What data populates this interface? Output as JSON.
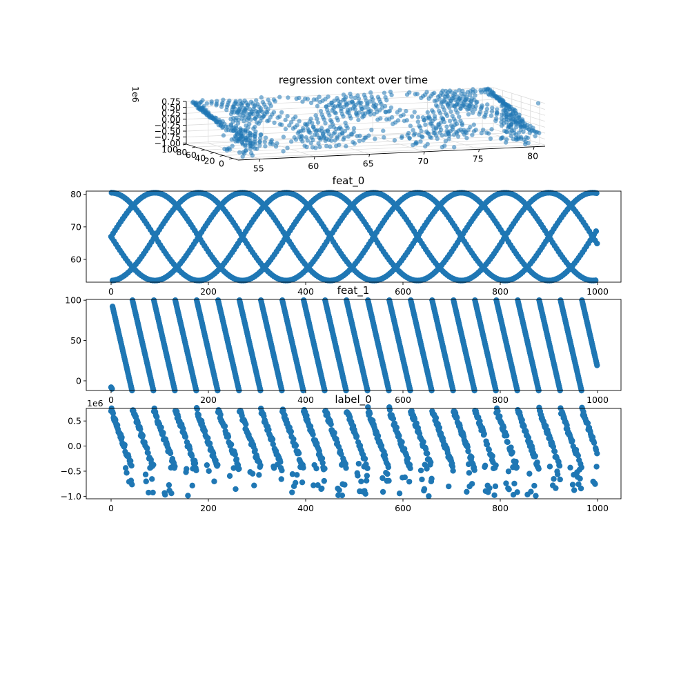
{
  "chart_data": [
    {
      "type": "scatter3d",
      "title": "regression context over time",
      "z_offset_label": "1e6",
      "x_range": [
        53,
        81
      ],
      "y_range": [
        -12,
        100
      ],
      "z_range": [
        -1.05,
        0.75
      ],
      "x_ticks": [
        {
          "v": 55,
          "t": "55"
        },
        {
          "v": 60,
          "t": "60"
        },
        {
          "v": 65,
          "t": "65"
        },
        {
          "v": 70,
          "t": "70"
        },
        {
          "v": 75,
          "t": "75"
        },
        {
          "v": 80,
          "t": "80"
        }
      ],
      "y_ticks": [
        {
          "v": 0,
          "t": "0"
        },
        {
          "v": 20,
          "t": "20"
        },
        {
          "v": 40,
          "t": "40"
        },
        {
          "v": 60,
          "t": "60"
        },
        {
          "v": 80,
          "t": "80"
        },
        {
          "v": 100,
          "t": "100"
        }
      ],
      "z_ticks": [
        {
          "v": 0.75,
          "t": "0.75"
        },
        {
          "v": 0.5,
          "t": "0.50"
        },
        {
          "v": 0.25,
          "t": "0.25"
        },
        {
          "v": 0,
          "t": "0.00"
        },
        {
          "v": -0.25,
          "t": "−0.25"
        },
        {
          "v": -0.5,
          "t": "−0.50"
        },
        {
          "v": -0.75,
          "t": "−0.75"
        },
        {
          "v": -1,
          "t": "−1.00"
        }
      ],
      "color": "#1f77b4",
      "grid": true
    },
    {
      "type": "scatter",
      "title": "feat_0",
      "x_range": [
        0,
        1000
      ],
      "ylim": [
        53,
        81
      ],
      "x_ticks": [
        {
          "v": 0,
          "t": "0"
        },
        {
          "v": 200,
          "t": "200"
        },
        {
          "v": 400,
          "t": "400"
        },
        {
          "v": 600,
          "t": "600"
        },
        {
          "v": 800,
          "t": "800"
        },
        {
          "v": 1000,
          "t": "1000"
        }
      ],
      "y_ticks": [
        {
          "v": 60,
          "t": "60"
        },
        {
          "v": 70,
          "t": "70"
        },
        {
          "v": 80,
          "t": "80"
        }
      ],
      "series_model": "y = 67 + 13.5*sin(2*pi*t/T + phase) with T≈360 and phases 0, 90, 180, 270 degrees",
      "color": "#1f77b4",
      "grid": false
    },
    {
      "type": "scatter",
      "title": "feat_1",
      "x_range": [
        0,
        1000
      ],
      "ylim": [
        -12,
        101
      ],
      "x_ticks": [
        {
          "v": 0,
          "t": "0"
        },
        {
          "v": 200,
          "t": "200"
        },
        {
          "v": 400,
          "t": "400"
        },
        {
          "v": 600,
          "t": "600"
        },
        {
          "v": 800,
          "t": "800"
        },
        {
          "v": 1000,
          "t": "1000"
        }
      ],
      "y_ticks": [
        {
          "v": 0,
          "t": "0"
        },
        {
          "v": 50,
          "t": "50"
        },
        {
          "v": 100,
          "t": "100"
        }
      ],
      "series_model": "sawtooth: each cycle ~44 steps, falls linearly from 100 to -12",
      "color": "#1f77b4",
      "grid": false
    },
    {
      "type": "scatter",
      "title": "label_0",
      "y_offset_label": "1e6",
      "x_range": [
        0,
        1000
      ],
      "ylim": [
        -1.05,
        0.75
      ],
      "x_ticks": [
        {
          "v": 0,
          "t": "0"
        },
        {
          "v": 200,
          "t": "200"
        },
        {
          "v": 400,
          "t": "400"
        },
        {
          "v": 600,
          "t": "600"
        },
        {
          "v": 800,
          "t": "800"
        },
        {
          "v": 1000,
          "t": "1000"
        }
      ],
      "y_ticks": [
        {
          "v": 0.5,
          "t": "0.5"
        },
        {
          "v": 0,
          "t": "0.0"
        },
        {
          "v": -0.5,
          "t": "−0.5"
        },
        {
          "v": -1,
          "t": "−1.0"
        }
      ],
      "series_model": "cyclic with feat_1; falls from ~0.7 to ~-0.4 each cycle, with scattered points down to -1.0",
      "color": "#1f77b4",
      "grid": false
    }
  ]
}
